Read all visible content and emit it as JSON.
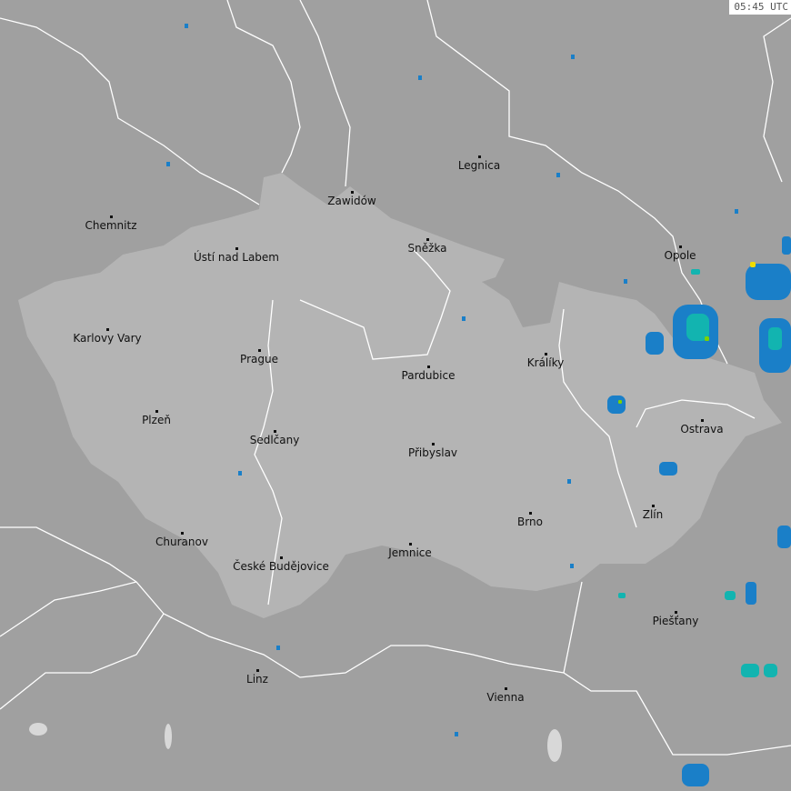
{
  "timestamp": "05:45 UTC",
  "colors": {
    "background": "#a0a0a0",
    "country": "#b4b4b4",
    "border": "#ffffff",
    "radar_low": "#1a7fc8",
    "radar_mid": "#12b4b0",
    "radar_high": "#7cd200",
    "radar_peak": "#f0dc00"
  },
  "cities": [
    "Chemnitz",
    "Zawidów",
    "Legnica",
    "Ústí nad Labem",
    "Sněžka",
    "Opole",
    "Karlovy Vary",
    "Prague",
    "Pardubice",
    "Králíky",
    "Plzeň",
    "Sedlčany",
    "Přibyslav",
    "Ostrava",
    "Zlín",
    "Brno",
    "Churanov",
    "České Budějovice",
    "Jemnice",
    "Piešťany",
    "Linz",
    "Vienna"
  ]
}
